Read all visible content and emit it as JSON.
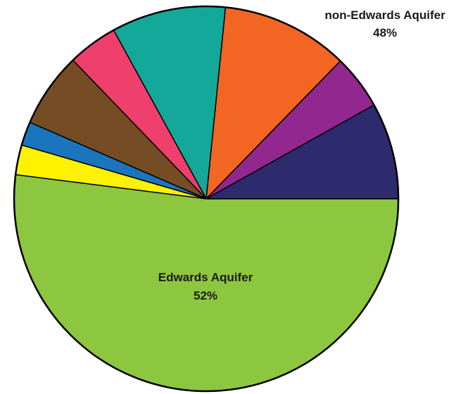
{
  "chart_data": {
    "type": "pie",
    "title": "",
    "start_angle_deg": 0,
    "direction": "clockwise",
    "legend": "none",
    "labels": [
      {
        "line1": "Edwards Aquifer",
        "line2": "52%"
      },
      {
        "line1": "non-Edwards Aquifer",
        "line2": "48%"
      }
    ],
    "slices": [
      {
        "value": 52.0,
        "color": "#8dc63f"
      },
      {
        "value": 2.5,
        "color": "#fff200"
      },
      {
        "value": 2.0,
        "color": "#1b75bc"
      },
      {
        "value": 6.3,
        "color": "#754c24"
      },
      {
        "value": 4.2,
        "color": "#ee3f6d"
      },
      {
        "value": 9.6,
        "color": "#14a89a"
      },
      {
        "value": 10.7,
        "color": "#f26522"
      },
      {
        "value": 4.6,
        "color": "#92278f"
      },
      {
        "value": 8.1,
        "color": "#2e2a6e"
      }
    ]
  }
}
